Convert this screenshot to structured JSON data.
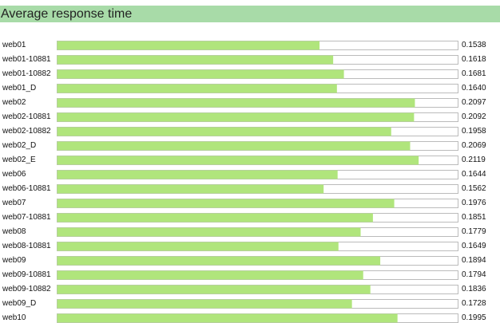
{
  "colors": {
    "header_bg": "#a8dba8",
    "bar_fill": "#b0e57c",
    "track_border": "#bbbbbb",
    "text": "#111111"
  },
  "chart_data": {
    "type": "bar",
    "orientation": "horizontal",
    "title": "Average response time",
    "xlim": [
      0,
      0.235
    ],
    "categories": [
      "web01",
      "web01-10881",
      "web01-10882",
      "web01_D",
      "web02",
      "web02-10881",
      "web02-10882",
      "web02_D",
      "web02_E",
      "web06",
      "web06-10881",
      "web07",
      "web07-10881",
      "web08",
      "web08-10881",
      "web09",
      "web09-10881",
      "web09-10882",
      "web09_D",
      "web10"
    ],
    "values": [
      0.1538,
      0.1618,
      0.1681,
      0.164,
      0.2097,
      0.2092,
      0.1958,
      0.2069,
      0.2119,
      0.1644,
      0.1562,
      0.1976,
      0.1851,
      0.1779,
      0.1649,
      0.1894,
      0.1794,
      0.1836,
      0.1728,
      0.1995
    ],
    "value_labels": [
      "0.1538",
      "0.1618",
      "0.1681",
      "0.1640",
      "0.2097",
      "0.2092",
      "0.1958",
      "0.2069",
      "0.2119",
      "0.1644",
      "0.1562",
      "0.1976",
      "0.1851",
      "0.1779",
      "0.1649",
      "0.1894",
      "0.1794",
      "0.1836",
      "0.1728",
      "0.1995"
    ]
  }
}
